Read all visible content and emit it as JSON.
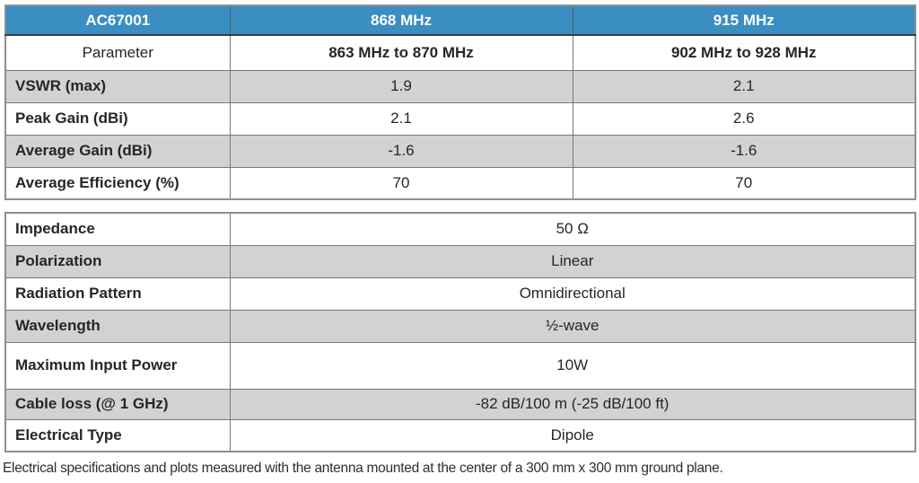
{
  "colors": {
    "header_blue": "#3a8ec1",
    "row_gray": "#d3d2d0",
    "row_white": "#ffffff",
    "border_outer": "#8e8f91",
    "border_inner": "#77787b",
    "header_text": "#ffffff",
    "label_text": "#262626",
    "value_text": "#3e3e3e"
  },
  "table1": {
    "model": "AC67001",
    "columns": [
      "868 MHz",
      "915 MHz"
    ],
    "subheader": {
      "label": "Parameter",
      "range1": "863 MHz to 870 MHz",
      "range2": "902 MHz to 928 MHz"
    },
    "rows": [
      {
        "label": "VSWR (max)",
        "v868": "1.9",
        "v915": "2.1"
      },
      {
        "label": "Peak Gain (dBi)",
        "v868": "2.1",
        "v915": "2.6"
      },
      {
        "label": "Average Gain (dBi)",
        "v868": "-1.6",
        "v915": "-1.6"
      },
      {
        "label": "Average Efficiency (%)",
        "v868": "70",
        "v915": "70"
      }
    ]
  },
  "table2": {
    "rows": [
      {
        "label": "Impedance",
        "value": "50 Ω"
      },
      {
        "label": "Polarization",
        "value": "Linear"
      },
      {
        "label": "Radiation Pattern",
        "value": "Omnidirectional"
      },
      {
        "label": "Wavelength",
        "value": "½-wave"
      },
      {
        "label": "Maximum Input Power",
        "value": "10W"
      },
      {
        "label": "Cable loss (@ 1 GHz)",
        "value": "-82 dB/100 m (-25 dB/100 ft)"
      },
      {
        "label": "Electrical Type",
        "value": "Dipole"
      }
    ]
  },
  "footer": {
    "note": "Electrical specifications and plots measured with the antenna mounted at the center of a 300 mm x 300 mm ground plane."
  }
}
